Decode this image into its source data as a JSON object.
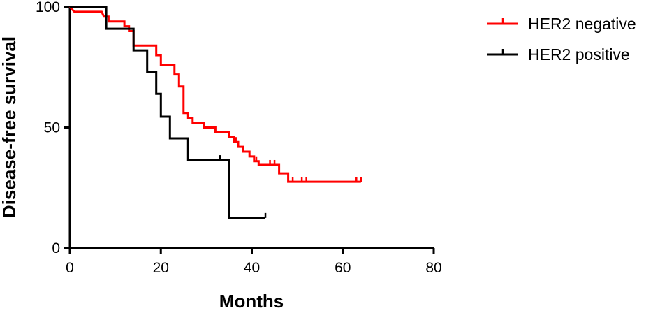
{
  "chart_data": {
    "type": "line",
    "subtype": "kaplan-meier step survival curve",
    "title": "",
    "xlabel": "Months",
    "ylabel": "Disease-free survival",
    "xlim": [
      0,
      80
    ],
    "ylim": [
      0,
      100
    ],
    "x_ticks": [
      0,
      20,
      40,
      60,
      80
    ],
    "y_ticks": [
      0,
      50,
      100
    ],
    "grid": false,
    "legend_position": "top-right",
    "series": [
      {
        "name": "HER2 negative",
        "color": "#ff0000",
        "steps": [
          [
            0,
            100
          ],
          [
            1,
            98
          ],
          [
            7,
            98
          ],
          [
            7.5,
            96
          ],
          [
            8.5,
            96
          ],
          [
            8.5,
            94
          ],
          [
            12,
            94
          ],
          [
            12,
            92
          ],
          [
            13,
            92
          ],
          [
            13,
            90
          ],
          [
            14,
            90
          ],
          [
            14,
            84
          ],
          [
            19,
            84
          ],
          [
            19,
            80
          ],
          [
            20,
            80
          ],
          [
            20,
            76
          ],
          [
            23,
            76
          ],
          [
            23,
            72
          ],
          [
            24,
            72
          ],
          [
            24,
            67
          ],
          [
            25,
            67
          ],
          [
            25,
            56
          ],
          [
            26,
            56
          ],
          [
            26,
            54
          ],
          [
            27,
            54
          ],
          [
            27,
            52
          ],
          [
            29.5,
            52
          ],
          [
            29.5,
            50
          ],
          [
            32,
            50
          ],
          [
            32,
            48
          ],
          [
            35,
            48
          ],
          [
            35,
            46
          ],
          [
            36,
            46
          ],
          [
            36,
            44
          ],
          [
            37,
            44
          ],
          [
            37,
            42
          ],
          [
            38,
            42
          ],
          [
            38,
            40
          ],
          [
            39.5,
            40
          ],
          [
            39.5,
            38
          ],
          [
            40.5,
            38
          ],
          [
            40.5,
            36
          ],
          [
            41.5,
            36
          ],
          [
            41.5,
            34.5
          ],
          [
            46,
            34.5
          ],
          [
            46,
            31
          ],
          [
            48,
            31
          ],
          [
            48,
            27.5
          ],
          [
            64,
            27.5
          ]
        ],
        "censored": [
          [
            36.5,
            44
          ],
          [
            41,
            36
          ],
          [
            44,
            34.5
          ],
          [
            45,
            34.5
          ],
          [
            49,
            27.5
          ],
          [
            51,
            27.5
          ],
          [
            52,
            27.5
          ],
          [
            63,
            27.5
          ],
          [
            64,
            27.5
          ]
        ]
      },
      {
        "name": "HER2 positive",
        "color": "#000000",
        "steps": [
          [
            0,
            100
          ],
          [
            8,
            100
          ],
          [
            8,
            91
          ],
          [
            14,
            91
          ],
          [
            14,
            82
          ],
          [
            17,
            82
          ],
          [
            17,
            73
          ],
          [
            19,
            73
          ],
          [
            19,
            64
          ],
          [
            20,
            64
          ],
          [
            20,
            54.5
          ],
          [
            22,
            54.5
          ],
          [
            22,
            45.5
          ],
          [
            26,
            45.5
          ],
          [
            26,
            36.5
          ],
          [
            35,
            36.5
          ],
          [
            35,
            12.5
          ],
          [
            43,
            12.5
          ]
        ],
        "censored": [
          [
            33,
            36.5
          ],
          [
            43,
            12.5
          ]
        ]
      }
    ]
  }
}
